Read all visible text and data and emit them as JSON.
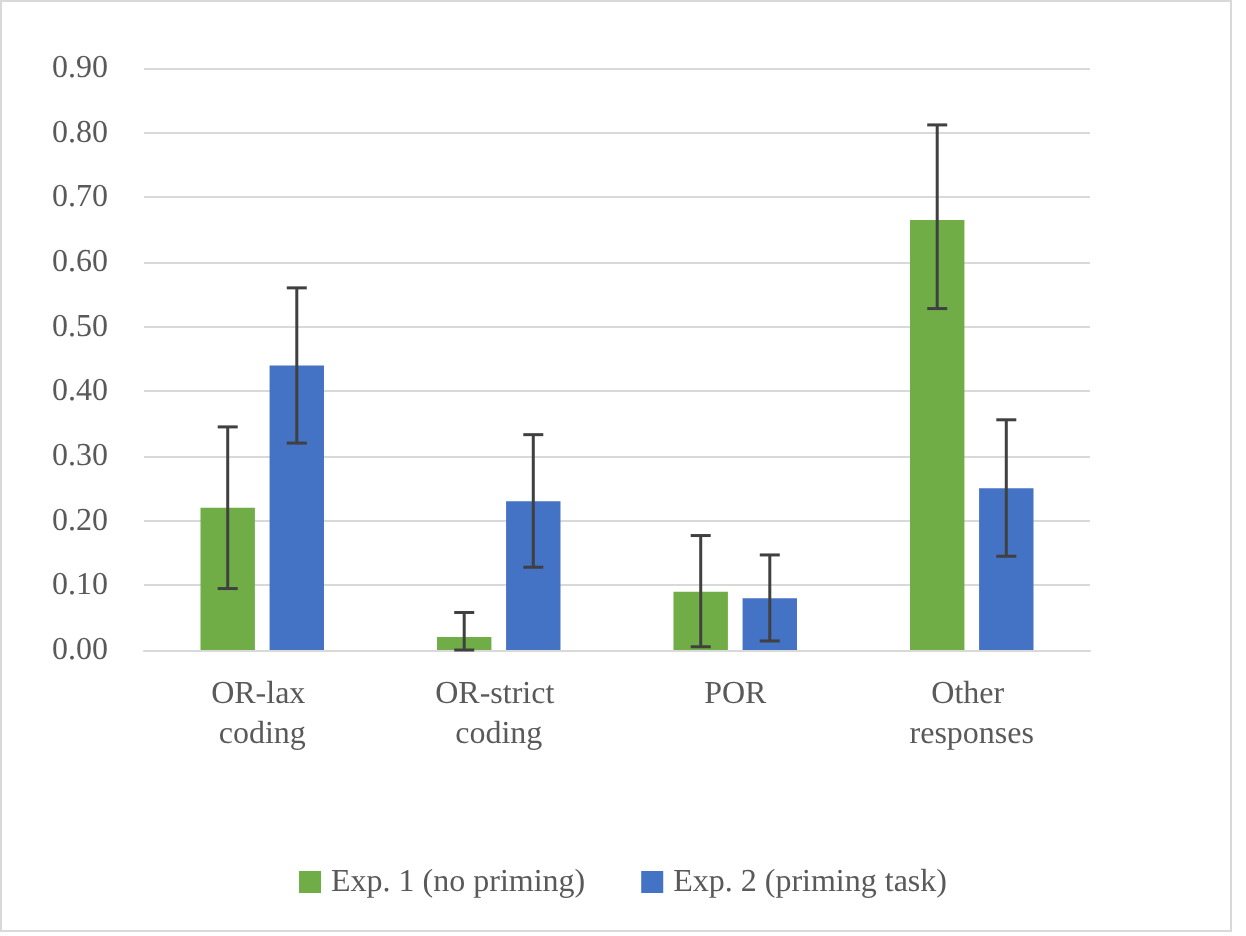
{
  "chart_data": {
    "type": "bar",
    "categories": [
      "OR-lax coding",
      "OR-strict coding",
      "POR",
      "Other responses"
    ],
    "series": [
      {
        "name": "Exp. 1 (no priming)",
        "color": "#70ad47",
        "values": [
          0.22,
          0.02,
          0.09,
          0.665
        ],
        "errors": [
          [
            0.095,
            0.345
          ],
          [
            0.0,
            0.058
          ],
          [
            0.005,
            0.177
          ],
          [
            0.528,
            0.812
          ]
        ]
      },
      {
        "name": "Exp. 2 (priming task)",
        "color": "#4472c4",
        "values": [
          0.44,
          0.23,
          0.08,
          0.25
        ],
        "errors": [
          [
            0.32,
            0.56
          ],
          [
            0.128,
            0.333
          ],
          [
            0.014,
            0.147
          ],
          [
            0.145,
            0.356
          ]
        ]
      }
    ],
    "ylim": [
      0,
      0.9
    ],
    "yticks": [
      {
        "value": 0,
        "label": "0.00"
      },
      {
        "value": 0.1,
        "label": "0.10"
      },
      {
        "value": 0.2,
        "label": "0.20"
      },
      {
        "value": 0.3,
        "label": "0.30"
      },
      {
        "value": 0.4,
        "label": "0.40"
      },
      {
        "value": 0.5,
        "label": "0.50"
      },
      {
        "value": 0.6,
        "label": "0.60"
      },
      {
        "value": 0.7,
        "label": "0.70"
      },
      {
        "value": 0.8,
        "label": "0.80"
      },
      {
        "value": 0.9,
        "label": "0.90"
      }
    ],
    "grid": "y",
    "legend": "bottom"
  }
}
